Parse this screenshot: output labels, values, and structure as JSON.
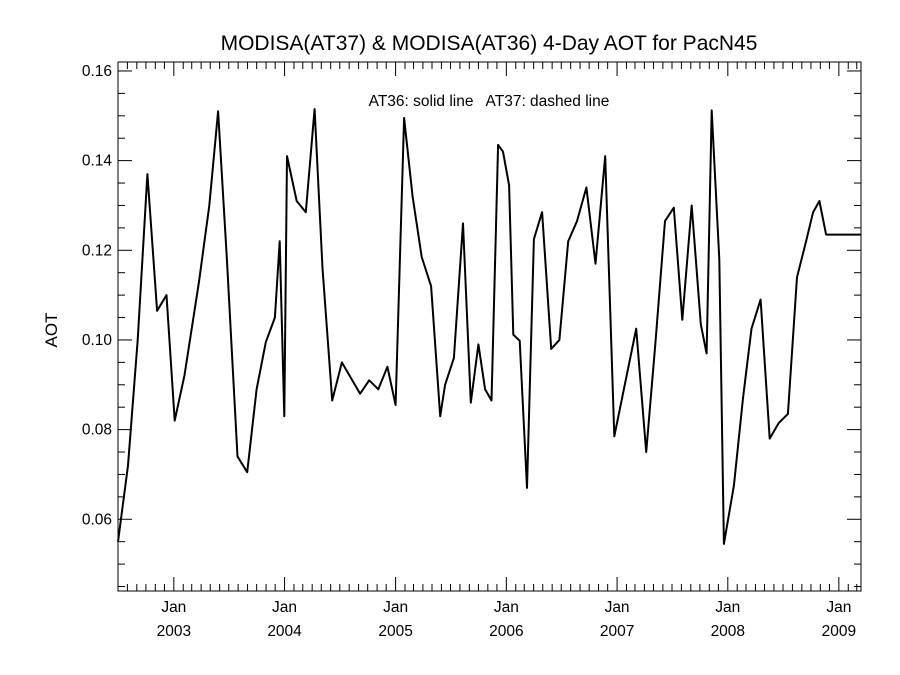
{
  "chart_data": {
    "type": "line",
    "title": "MODISA(AT37) & MODISA(AT36) 4-Day AOT for PacN45",
    "xlabel": "",
    "ylabel": "AOT",
    "annotation": "AT36: solid line   AT37: dashed line",
    "xlim": [
      "2002-07-01",
      "2009-03-15"
    ],
    "ylim": [
      0.044,
      0.162
    ],
    "y_ticks": [
      "0.06",
      "0.08",
      "0.10",
      "0.12",
      "0.14",
      "0.16"
    ],
    "y_tick_values": [
      0.06,
      0.08,
      0.1,
      0.12,
      0.14,
      0.16
    ],
    "x_ticks": [
      {
        "date": "2003-01-01",
        "month": "Jan",
        "year": "2003"
      },
      {
        "date": "2004-01-01",
        "month": "Jan",
        "year": "2004"
      },
      {
        "date": "2005-01-01",
        "month": "Jan",
        "year": "2005"
      },
      {
        "date": "2006-01-01",
        "month": "Jan",
        "year": "2006"
      },
      {
        "date": "2007-01-01",
        "month": "Jan",
        "year": "2007"
      },
      {
        "date": "2008-01-01",
        "month": "Jan",
        "year": "2008"
      },
      {
        "date": "2009-01-01",
        "month": "Jan",
        "year": "2009"
      }
    ],
    "grid": false,
    "series": [
      {
        "label": "AT36",
        "style": "solid",
        "color": "#000000",
        "x": [
          "2002-07-01",
          "2002-08-03",
          "2002-09-04",
          "2002-10-06",
          "2002-11-07",
          "2002-12-08",
          "2003-01-04",
          "2003-02-05",
          "2003-03-25",
          "2003-04-28",
          "2003-05-27",
          "2003-06-25",
          "2003-07-30",
          "2003-08-31",
          "2003-10-01",
          "2003-10-31",
          "2003-11-30",
          "2003-12-16",
          "2003-12-31",
          "2004-01-09",
          "2004-02-10",
          "2004-03-11",
          "2004-04-09",
          "2004-05-05",
          "2004-06-06",
          "2004-07-08",
          "2004-08-07",
          "2004-09-06",
          "2004-10-06",
          "2004-11-05",
          "2004-12-05",
          "2005-01-01",
          "2005-01-29",
          "2005-02-26",
          "2005-03-28",
          "2005-04-28",
          "2005-05-28",
          "2005-06-13",
          "2005-07-12",
          "2005-08-11",
          "2005-09-06",
          "2005-10-01",
          "2005-10-23",
          "2005-11-13",
          "2005-12-05",
          "2005-12-21",
          "2006-01-10",
          "2006-01-24",
          "2006-02-14",
          "2006-03-10",
          "2006-04-02",
          "2006-04-29",
          "2006-05-29",
          "2006-06-25",
          "2006-07-24",
          "2006-08-22",
          "2006-09-22",
          "2006-10-22",
          "2006-11-23",
          "2006-12-23",
          "2007-03-05",
          "2007-04-07",
          "2007-05-07",
          "2007-06-08",
          "2007-07-07",
          "2007-08-04",
          "2007-09-04",
          "2007-10-04",
          "2007-10-23",
          "2007-11-09",
          "2007-12-04",
          "2007-12-19",
          "2008-01-21",
          "2008-02-20",
          "2008-03-19",
          "2008-04-18",
          "2008-05-18",
          "2008-06-17",
          "2008-07-17",
          "2008-08-16",
          "2008-09-15",
          "2008-10-08",
          "2008-10-29",
          "2008-11-20",
          "2008-12-16",
          "2009-01-02",
          "2009-01-24",
          "2009-02-14",
          "2009-03-01",
          "2009-03-15"
        ],
        "y": [
          0.055,
          0.072,
          0.1,
          0.137,
          0.1065,
          0.11,
          0.082,
          0.092,
          0.113,
          0.13,
          0.151,
          0.118,
          0.074,
          0.0705,
          0.089,
          0.0995,
          0.105,
          0.122,
          0.083,
          0.141,
          0.131,
          0.1285,
          0.1515,
          0.116,
          0.0865,
          0.095,
          0.0915,
          0.088,
          0.091,
          0.089,
          0.094,
          0.0855,
          0.1495,
          0.132,
          0.1185,
          0.112,
          0.083,
          0.09,
          0.096,
          0.126,
          0.086,
          0.099,
          0.089,
          0.0865,
          0.1435,
          0.142,
          0.1345,
          0.1012,
          0.0998,
          0.067,
          0.1225,
          0.1285,
          0.098,
          0.1,
          0.122,
          0.1265,
          0.134,
          0.117,
          0.141,
          0.0785,
          0.1025,
          0.075,
          0.099,
          0.1265,
          0.1295,
          0.1045,
          0.13,
          0.1035,
          0.097,
          0.1512,
          0.118,
          0.0545,
          0.0675,
          0.087,
          0.1025,
          0.109,
          0.078,
          0.0815,
          0.0835,
          0.114,
          0.122,
          0.1285,
          0.131,
          0.1235,
          0.1235,
          0.1235,
          0.1235,
          0.1235,
          0.1235,
          0.1235
        ]
      }
    ]
  }
}
